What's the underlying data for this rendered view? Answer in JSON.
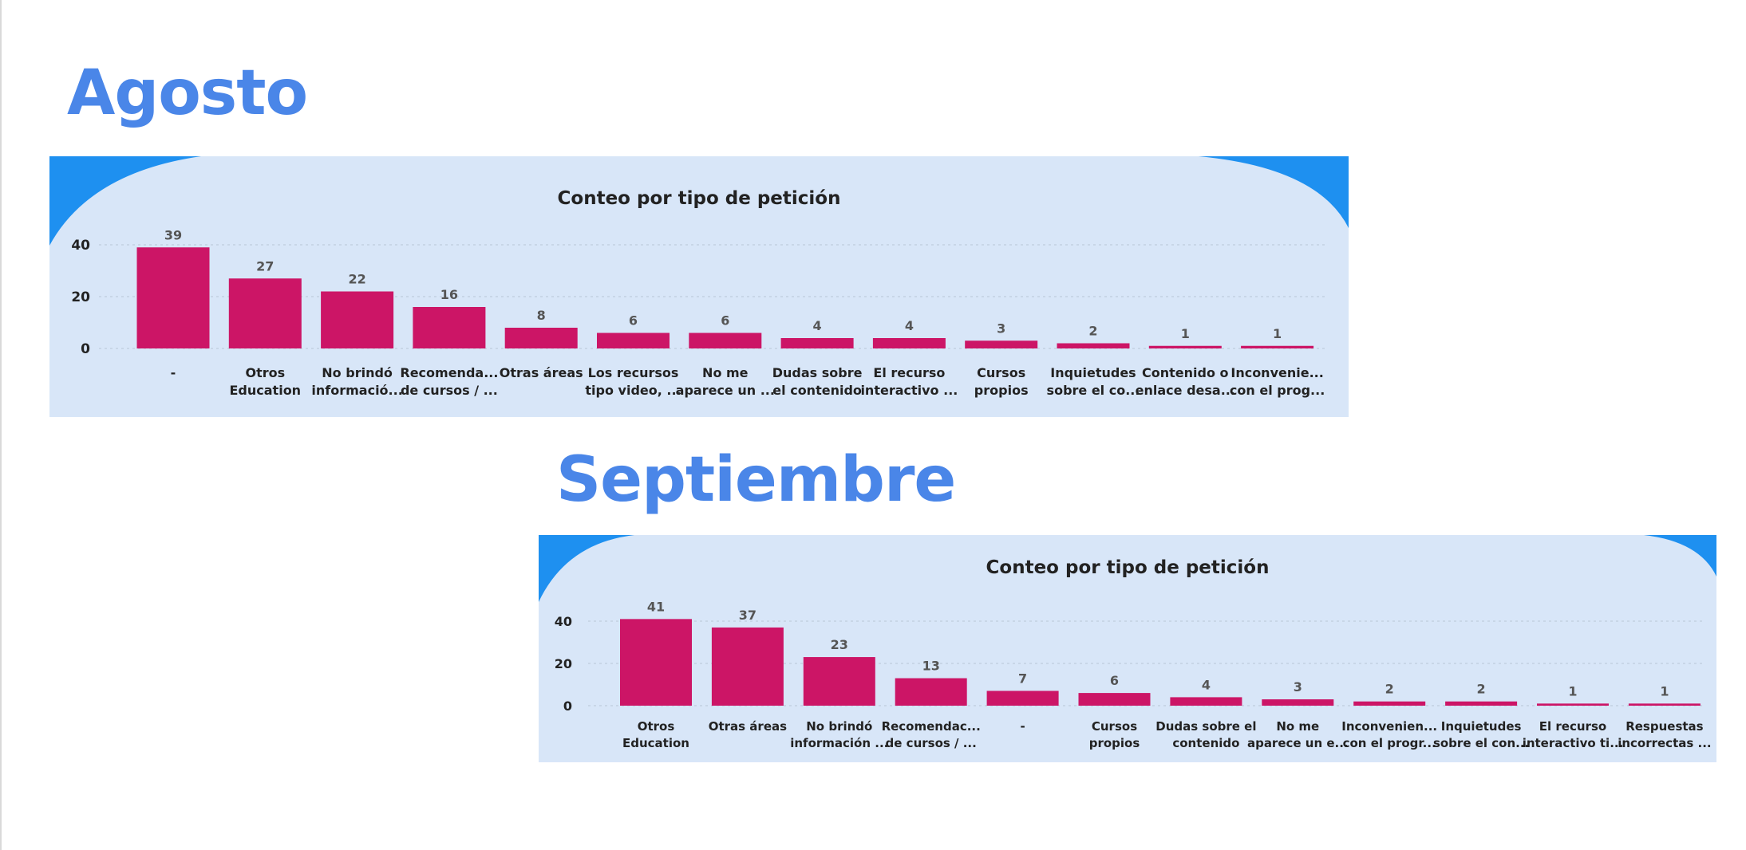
{
  "page": {
    "agosto_heading": "Agosto",
    "septiembre_heading": "Septiembre"
  },
  "colors": {
    "bar": "#CC1566",
    "panel_bg": "#D8E6F8",
    "corner": "#1E90F0",
    "heading": "#4A86E8"
  },
  "chart_data": [
    {
      "type": "bar",
      "title": "Conteo por tipo de petición",
      "xlabel": "",
      "ylabel": "",
      "ylim": [
        0,
        40
      ],
      "yticks": [
        0,
        20,
        40
      ],
      "grid": true,
      "categories": [
        [
          "-"
        ],
        [
          "Otros",
          "Education"
        ],
        [
          "No brindó",
          "informació..."
        ],
        [
          "Recomenda...",
          "de cursos / ..."
        ],
        [
          "Otras áreas"
        ],
        [
          "Los recursos",
          "tipo video, ..."
        ],
        [
          "No me",
          "aparece un ..."
        ],
        [
          "Dudas sobre",
          "el contenido"
        ],
        [
          "El recurso",
          "interactivo ..."
        ],
        [
          "Cursos",
          "propios"
        ],
        [
          "Inquietudes",
          "sobre el co..."
        ],
        [
          "Contenido o",
          "enlace desa..."
        ],
        [
          "Inconvenie...",
          "con el prog..."
        ]
      ],
      "values": [
        39,
        27,
        22,
        16,
        8,
        6,
        6,
        4,
        4,
        3,
        2,
        1,
        1
      ]
    },
    {
      "type": "bar",
      "title": "Conteo por tipo de petición",
      "xlabel": "",
      "ylabel": "",
      "ylim": [
        0,
        40
      ],
      "yticks": [
        0,
        20,
        40
      ],
      "grid": true,
      "categories": [
        [
          "Otros",
          "Education"
        ],
        [
          "Otras áreas"
        ],
        [
          "No brindó",
          "información ..."
        ],
        [
          "Recomendac...",
          "de cursos / ..."
        ],
        [
          "-"
        ],
        [
          "Cursos",
          "propios"
        ],
        [
          "Dudas sobre el",
          "contenido"
        ],
        [
          "No me",
          "aparece un e..."
        ],
        [
          "Inconvenien...",
          "con el progr..."
        ],
        [
          "Inquietudes",
          "sobre el con..."
        ],
        [
          "El recurso",
          "interactivo ti..."
        ],
        [
          "Respuestas",
          "incorrectas ..."
        ]
      ],
      "values": [
        41,
        37,
        23,
        13,
        7,
        6,
        4,
        3,
        2,
        2,
        1,
        1
      ]
    }
  ]
}
